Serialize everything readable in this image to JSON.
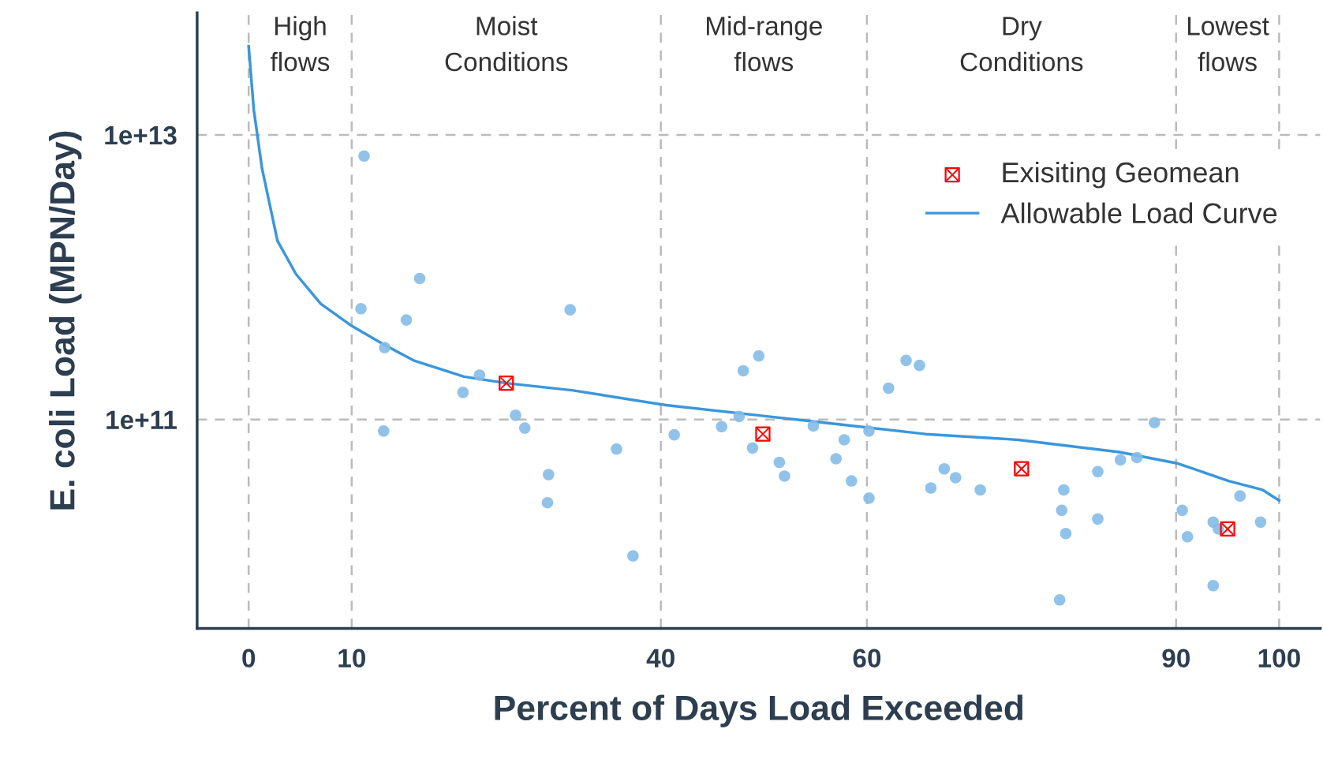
{
  "chart_data": {
    "type": "scatter",
    "xlabel": "Percent of Days Load Exceeded",
    "ylabel": "E. coli Load (MPN/Day)",
    "log": "y",
    "grid": true,
    "legend": "top right",
    "xlim": [
      -5,
      104
    ],
    "ylim": [
      3400000000.0,
      72000000000000.0
    ],
    "xticks": [
      0,
      10,
      40,
      60,
      90,
      100
    ],
    "yticks": [
      {
        "value": 100000000000.0,
        "label": "1e+11"
      },
      {
        "value": 10000000000000.0,
        "label": "1e+13"
      }
    ],
    "annotations": [
      "High\nflows",
      "Moist\nConditions",
      "Mid-range\nflows",
      "Dry\nConditions",
      "Lowest\nflows"
    ],
    "series": [
      {
        "color": "#85bde8",
        "marker": "circle",
        "x": [
          11.2,
          10.9,
          16.6,
          15.3,
          13.2,
          13.1,
          22.4,
          20.8,
          25.9,
          26.8,
          31.2,
          29.1,
          29.0,
          35.7,
          37.3,
          41.3,
          45.9,
          47.6,
          48.0,
          49.5,
          48.9,
          51.5,
          52.0,
          54.8,
          57.0,
          57.8,
          58.5,
          60.2,
          60.2,
          62.1,
          63.8,
          65.1,
          67.5,
          66.2,
          68.6,
          71.0,
          79.1,
          78.9,
          79.3,
          78.7,
          82.4,
          82.4,
          84.6,
          86.2,
          87.9,
          90.6,
          91.1,
          93.6,
          94.1,
          93.6,
          96.2,
          98.2
        ],
        "values": [
          7100000000000.0,
          600000000000.0,
          980000000000.0,
          500000000000.0,
          320000000000.0,
          83000000000.0,
          205000000000.0,
          155000000000.0,
          107000000000.0,
          87000000000.0,
          590000000000.0,
          41000000000.0,
          26000000000.0,
          62000000000.0,
          11000000000.0,
          78000000000.0,
          89000000000.0,
          105000000000.0,
          220000000000.0,
          280000000000.0,
          63000000000.0,
          50000000000.0,
          40000000000.0,
          90000000000.0,
          53000000000.0,
          72000000000.0,
          37000000000.0,
          83000000000.0,
          28000000000.0,
          166000000000.0,
          260000000000.0,
          240000000000.0,
          45000000000.0,
          33000000000.0,
          39000000000.0,
          32000000000.0,
          32000000000.0,
          23000000000.0,
          15800000000.0,
          5400000000.0,
          43000000000.0,
          20000000000.0,
          52000000000.0,
          54000000000.0,
          95000000000.0,
          23000000000.0,
          15000000000.0,
          19000000000.0,
          17000000000.0,
          6800000000.0,
          29000000000.0,
          19000000000.0
        ]
      },
      {
        "name": "Exisiting Geomean",
        "color": "#ff0000",
        "marker": "square",
        "x": [
          25.0,
          49.9,
          75.0,
          95.0
        ],
        "values": [
          180000000000.0,
          79000000000.0,
          45000000000.0,
          17000000000.0
        ]
      },
      {
        "type": "line",
        "name": "Allowable Load Curve",
        "color": "#3a96dd",
        "marker": "none",
        "line_style": "solid",
        "x": [
          0,
          0.5,
          1.3,
          2.8,
          4.6,
          7.0,
          9.9,
          12.7,
          16.0,
          20.9,
          25.0,
          31.5,
          40.5,
          49.4,
          57.6,
          65.7,
          74.7,
          84.5,
          90.2,
          95.1,
          98.4,
          100
        ],
        "values": [
          42000000000000.0,
          15000000000000.0,
          5800000000000.0,
          1800000000000.0,
          1050000000000.0,
          650000000000.0,
          460000000000.0,
          350000000000.0,
          260000000000.0,
          200000000000.0,
          180000000000.0,
          160000000000.0,
          126000000000.0,
          107000000000.0,
          92000000000.0,
          79000000000.0,
          72000000000.0,
          59000000000.0,
          49000000000.0,
          37000000000.0,
          32000000000.0,
          27000000000.0
        ]
      }
    ]
  }
}
